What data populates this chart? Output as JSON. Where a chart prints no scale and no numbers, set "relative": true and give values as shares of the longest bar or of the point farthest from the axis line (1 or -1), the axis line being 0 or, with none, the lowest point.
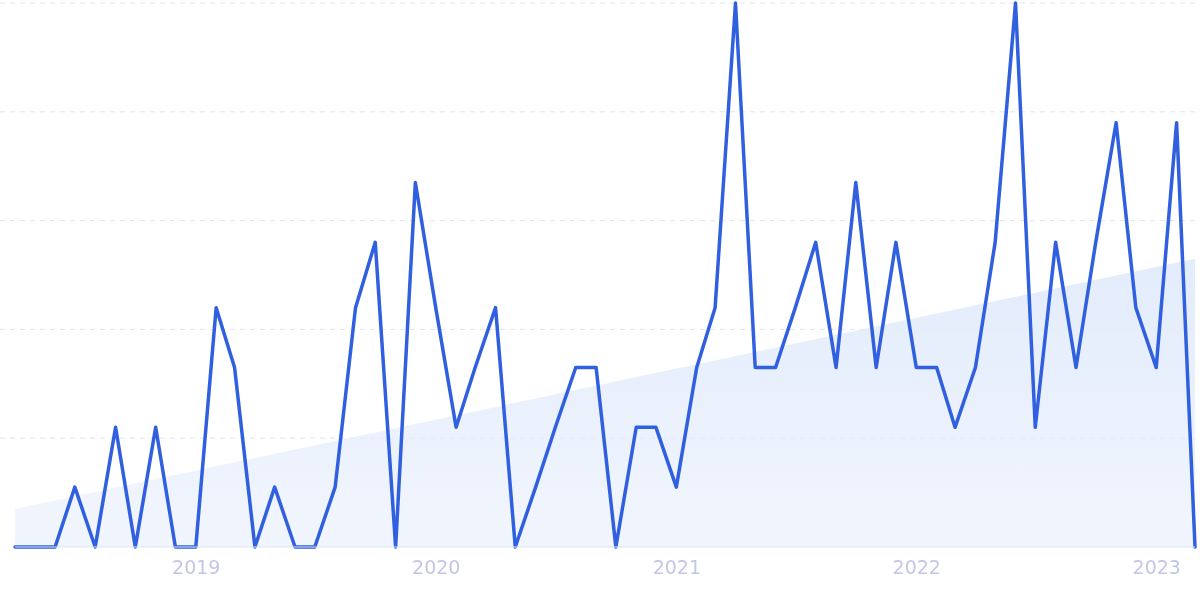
{
  "chart_data": {
    "type": "line",
    "relative": true,
    "grid": "y",
    "x": [
      "2018-04",
      "2018-05",
      "2018-06",
      "2018-07",
      "2018-08",
      "2018-09",
      "2018-10",
      "2018-11",
      "2018-12",
      "2019-01",
      "2019-02",
      "2019-03",
      "2019-04",
      "2019-05",
      "2019-06",
      "2019-07",
      "2019-08",
      "2019-09",
      "2019-10",
      "2019-11",
      "2019-12",
      "2020-01",
      "2020-02",
      "2020-03",
      "2020-04",
      "2020-05",
      "2020-06",
      "2020-07",
      "2020-08",
      "2020-09",
      "2020-10",
      "2020-11",
      "2020-12",
      "2021-01",
      "2021-02",
      "2021-03",
      "2021-04",
      "2021-05",
      "2021-06",
      "2021-07",
      "2021-08",
      "2021-09",
      "2021-10",
      "2021-11",
      "2021-12",
      "2022-01",
      "2022-02",
      "2022-03",
      "2022-04",
      "2022-05",
      "2022-06",
      "2022-07",
      "2022-08",
      "2022-09",
      "2022-10",
      "2022-11",
      "2022-12",
      "2023-01",
      "2023-02",
      "2023-03"
    ],
    "xlim": [
      "2018-04",
      "2023-03"
    ],
    "xticks": [
      {
        "value": "2019-01",
        "label": "2019"
      },
      {
        "value": "2020-01",
        "label": "2020"
      },
      {
        "value": "2021-01",
        "label": "2021"
      },
      {
        "value": "2022-01",
        "label": "2022"
      },
      {
        "value": "2023-01",
        "label": "2023"
      }
    ],
    "series": [
      {
        "type": "area",
        "color": "#e3ecfc",
        "x": [
          "2018-04",
          "2023-03"
        ],
        "values": [
          0.07,
          0.53
        ]
      },
      {
        "color": "#3060e0",
        "values": [
          0,
          0,
          0,
          0.11,
          0,
          0.22,
          0,
          0.22,
          0,
          0,
          0.44,
          0.33,
          0,
          0.11,
          0,
          0,
          0.11,
          0.44,
          0.56,
          0,
          0.67,
          0.44,
          0.22,
          0.33,
          0.44,
          0,
          0.11,
          0.22,
          0.33,
          0.33,
          0,
          0.22,
          0.22,
          0.11,
          0.33,
          0.44,
          1,
          0.33,
          0.33,
          0.44,
          0.56,
          0.33,
          0.67,
          0.33,
          0.56,
          0.33,
          0.33,
          0.22,
          0.33,
          0.56,
          1,
          0.22,
          0.56,
          0.33,
          0.56,
          0.78,
          0.44,
          0.33,
          0.78,
          0
        ]
      }
    ]
  }
}
